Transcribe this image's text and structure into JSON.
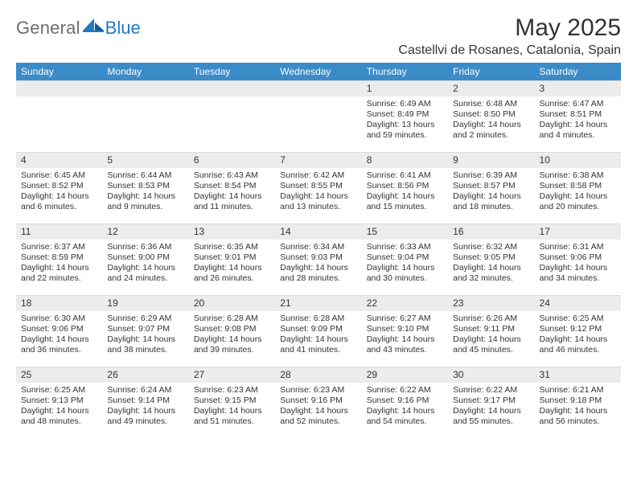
{
  "brand": {
    "text_general": "General",
    "text_blue": "Blue",
    "general_color": "#6d6e71",
    "blue_color": "#1f79c4"
  },
  "header": {
    "month_title": "May 2025",
    "location": "Castellvi de Rosanes, Catalonia, Spain"
  },
  "style": {
    "header_bg": "#3b8bc9",
    "header_fg": "#ffffff",
    "daynum_bg": "#ececec",
    "border_color": "#d9d9d9",
    "text_color": "#333333",
    "page_bg": "#ffffff",
    "font_family": "Arial, Helvetica, sans-serif",
    "weekday_fontsize": 12,
    "daynum_fontsize": 12,
    "body_fontsize": 10.5,
    "title_fontsize": 30,
    "location_fontsize": 16
  },
  "weekdays": [
    "Sunday",
    "Monday",
    "Tuesday",
    "Wednesday",
    "Thursday",
    "Friday",
    "Saturday"
  ],
  "weeks": [
    [
      {
        "num": "",
        "lines": []
      },
      {
        "num": "",
        "lines": []
      },
      {
        "num": "",
        "lines": []
      },
      {
        "num": "",
        "lines": []
      },
      {
        "num": "1",
        "lines": [
          "Sunrise: 6:49 AM",
          "Sunset: 8:49 PM",
          "Daylight: 13 hours and 59 minutes."
        ]
      },
      {
        "num": "2",
        "lines": [
          "Sunrise: 6:48 AM",
          "Sunset: 8:50 PM",
          "Daylight: 14 hours and 2 minutes."
        ]
      },
      {
        "num": "3",
        "lines": [
          "Sunrise: 6:47 AM",
          "Sunset: 8:51 PM",
          "Daylight: 14 hours and 4 minutes."
        ]
      }
    ],
    [
      {
        "num": "4",
        "lines": [
          "Sunrise: 6:45 AM",
          "Sunset: 8:52 PM",
          "Daylight: 14 hours and 6 minutes."
        ]
      },
      {
        "num": "5",
        "lines": [
          "Sunrise: 6:44 AM",
          "Sunset: 8:53 PM",
          "Daylight: 14 hours and 9 minutes."
        ]
      },
      {
        "num": "6",
        "lines": [
          "Sunrise: 6:43 AM",
          "Sunset: 8:54 PM",
          "Daylight: 14 hours and 11 minutes."
        ]
      },
      {
        "num": "7",
        "lines": [
          "Sunrise: 6:42 AM",
          "Sunset: 8:55 PM",
          "Daylight: 14 hours and 13 minutes."
        ]
      },
      {
        "num": "8",
        "lines": [
          "Sunrise: 6:41 AM",
          "Sunset: 8:56 PM",
          "Daylight: 14 hours and 15 minutes."
        ]
      },
      {
        "num": "9",
        "lines": [
          "Sunrise: 6:39 AM",
          "Sunset: 8:57 PM",
          "Daylight: 14 hours and 18 minutes."
        ]
      },
      {
        "num": "10",
        "lines": [
          "Sunrise: 6:38 AM",
          "Sunset: 8:58 PM",
          "Daylight: 14 hours and 20 minutes."
        ]
      }
    ],
    [
      {
        "num": "11",
        "lines": [
          "Sunrise: 6:37 AM",
          "Sunset: 8:59 PM",
          "Daylight: 14 hours and 22 minutes."
        ]
      },
      {
        "num": "12",
        "lines": [
          "Sunrise: 6:36 AM",
          "Sunset: 9:00 PM",
          "Daylight: 14 hours and 24 minutes."
        ]
      },
      {
        "num": "13",
        "lines": [
          "Sunrise: 6:35 AM",
          "Sunset: 9:01 PM",
          "Daylight: 14 hours and 26 minutes."
        ]
      },
      {
        "num": "14",
        "lines": [
          "Sunrise: 6:34 AM",
          "Sunset: 9:03 PM",
          "Daylight: 14 hours and 28 minutes."
        ]
      },
      {
        "num": "15",
        "lines": [
          "Sunrise: 6:33 AM",
          "Sunset: 9:04 PM",
          "Daylight: 14 hours and 30 minutes."
        ]
      },
      {
        "num": "16",
        "lines": [
          "Sunrise: 6:32 AM",
          "Sunset: 9:05 PM",
          "Daylight: 14 hours and 32 minutes."
        ]
      },
      {
        "num": "17",
        "lines": [
          "Sunrise: 6:31 AM",
          "Sunset: 9:06 PM",
          "Daylight: 14 hours and 34 minutes."
        ]
      }
    ],
    [
      {
        "num": "18",
        "lines": [
          "Sunrise: 6:30 AM",
          "Sunset: 9:06 PM",
          "Daylight: 14 hours and 36 minutes."
        ]
      },
      {
        "num": "19",
        "lines": [
          "Sunrise: 6:29 AM",
          "Sunset: 9:07 PM",
          "Daylight: 14 hours and 38 minutes."
        ]
      },
      {
        "num": "20",
        "lines": [
          "Sunrise: 6:28 AM",
          "Sunset: 9:08 PM",
          "Daylight: 14 hours and 39 minutes."
        ]
      },
      {
        "num": "21",
        "lines": [
          "Sunrise: 6:28 AM",
          "Sunset: 9:09 PM",
          "Daylight: 14 hours and 41 minutes."
        ]
      },
      {
        "num": "22",
        "lines": [
          "Sunrise: 6:27 AM",
          "Sunset: 9:10 PM",
          "Daylight: 14 hours and 43 minutes."
        ]
      },
      {
        "num": "23",
        "lines": [
          "Sunrise: 6:26 AM",
          "Sunset: 9:11 PM",
          "Daylight: 14 hours and 45 minutes."
        ]
      },
      {
        "num": "24",
        "lines": [
          "Sunrise: 6:25 AM",
          "Sunset: 9:12 PM",
          "Daylight: 14 hours and 46 minutes."
        ]
      }
    ],
    [
      {
        "num": "25",
        "lines": [
          "Sunrise: 6:25 AM",
          "Sunset: 9:13 PM",
          "Daylight: 14 hours and 48 minutes."
        ]
      },
      {
        "num": "26",
        "lines": [
          "Sunrise: 6:24 AM",
          "Sunset: 9:14 PM",
          "Daylight: 14 hours and 49 minutes."
        ]
      },
      {
        "num": "27",
        "lines": [
          "Sunrise: 6:23 AM",
          "Sunset: 9:15 PM",
          "Daylight: 14 hours and 51 minutes."
        ]
      },
      {
        "num": "28",
        "lines": [
          "Sunrise: 6:23 AM",
          "Sunset: 9:16 PM",
          "Daylight: 14 hours and 52 minutes."
        ]
      },
      {
        "num": "29",
        "lines": [
          "Sunrise: 6:22 AM",
          "Sunset: 9:16 PM",
          "Daylight: 14 hours and 54 minutes."
        ]
      },
      {
        "num": "30",
        "lines": [
          "Sunrise: 6:22 AM",
          "Sunset: 9:17 PM",
          "Daylight: 14 hours and 55 minutes."
        ]
      },
      {
        "num": "31",
        "lines": [
          "Sunrise: 6:21 AM",
          "Sunset: 9:18 PM",
          "Daylight: 14 hours and 56 minutes."
        ]
      }
    ]
  ]
}
